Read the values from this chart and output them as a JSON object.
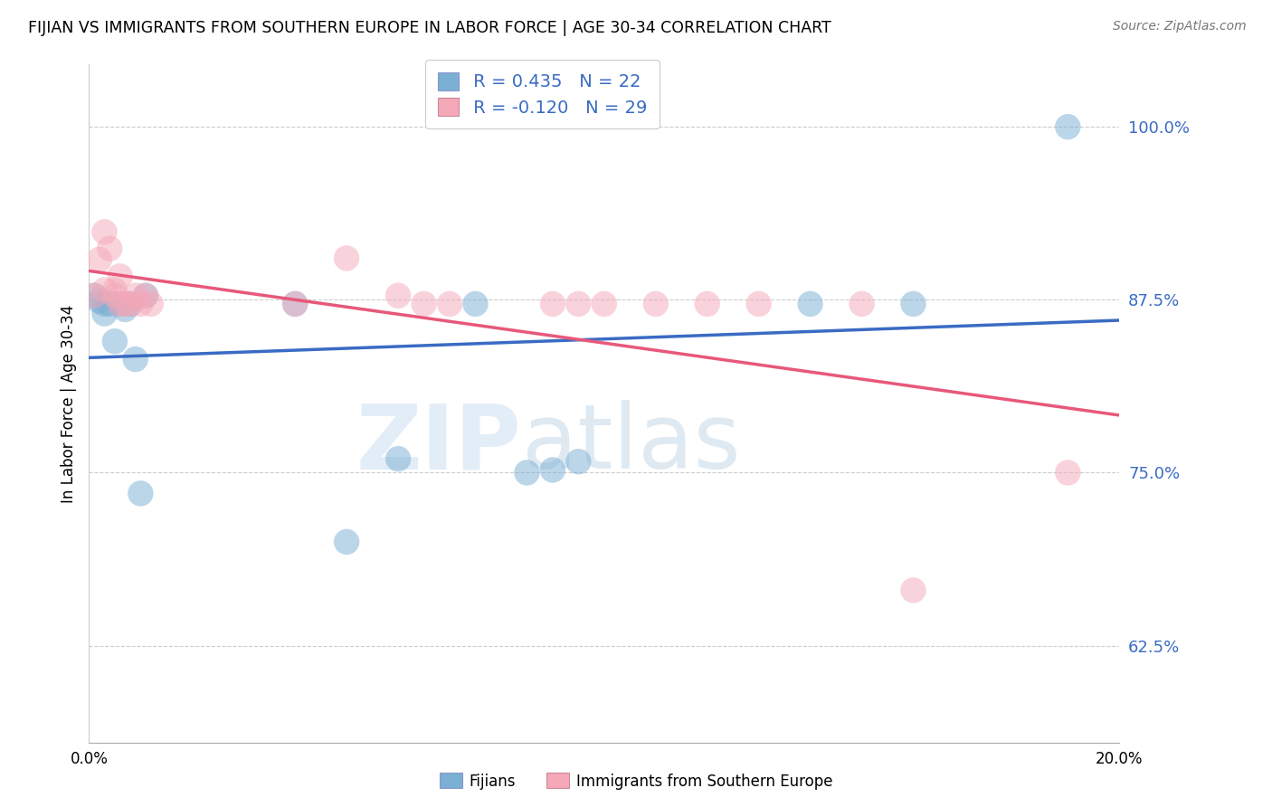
{
  "title": "FIJIAN VS IMMIGRANTS FROM SOUTHERN EUROPE IN LABOR FORCE | AGE 30-34 CORRELATION CHART",
  "source": "Source: ZipAtlas.com",
  "ylabel": "In Labor Force | Age 30-34",
  "ytick_labels": [
    "62.5%",
    "75.0%",
    "87.5%",
    "100.0%"
  ],
  "ytick_values": [
    0.625,
    0.75,
    0.875,
    1.0
  ],
  "xlim": [
    0.0,
    0.2
  ],
  "ylim": [
    0.555,
    1.045
  ],
  "blue_R": 0.435,
  "blue_N": 22,
  "pink_R": -0.12,
  "pink_N": 29,
  "blue_color": "#7bafd4",
  "pink_color": "#f4a8b8",
  "blue_line_color": "#3a6bc4",
  "pink_line_color": "#e8587a",
  "legend_label_blue": "Fijians",
  "legend_label_pink": "Immigrants from Southern Europe",
  "blue_points_x": [
    0.001,
    0.002,
    0.003,
    0.003,
    0.004,
    0.005,
    0.006,
    0.007,
    0.008,
    0.009,
    0.01,
    0.011,
    0.04,
    0.05,
    0.06,
    0.075,
    0.085,
    0.09,
    0.095,
    0.14,
    0.16,
    0.19
  ],
  "blue_points_y": [
    0.878,
    0.874,
    0.872,
    0.865,
    0.872,
    0.845,
    0.872,
    0.868,
    0.872,
    0.832,
    0.735,
    0.878,
    0.872,
    0.7,
    0.76,
    0.872,
    0.75,
    0.752,
    0.758,
    0.872,
    0.872,
    1.0
  ],
  "pink_points_x": [
    0.001,
    0.002,
    0.003,
    0.003,
    0.004,
    0.005,
    0.005,
    0.006,
    0.006,
    0.007,
    0.008,
    0.009,
    0.01,
    0.011,
    0.012,
    0.04,
    0.05,
    0.06,
    0.065,
    0.07,
    0.09,
    0.095,
    0.1,
    0.11,
    0.12,
    0.13,
    0.15,
    0.16,
    0.19
  ],
  "pink_points_y": [
    0.878,
    0.904,
    0.882,
    0.924,
    0.912,
    0.882,
    0.878,
    0.872,
    0.892,
    0.872,
    0.872,
    0.878,
    0.872,
    0.878,
    0.872,
    0.872,
    0.905,
    0.878,
    0.872,
    0.872,
    0.872,
    0.872,
    0.872,
    0.872,
    0.872,
    0.872,
    0.872,
    0.665,
    0.75
  ],
  "watermark_zip": "ZIP",
  "watermark_atlas": "atlas",
  "background_color": "#ffffff",
  "grid_color": "#cccccc",
  "tick_label_color": "#3a6bc4"
}
